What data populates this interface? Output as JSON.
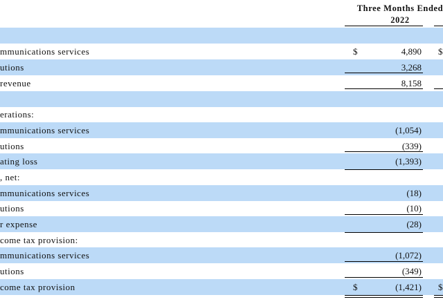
{
  "header": {
    "title": "Three Months Ended",
    "year": "2022"
  },
  "rows": [
    {
      "label": "",
      "value": "",
      "currency": "",
      "currency2": ""
    },
    {
      "label": "mmunications services",
      "value": "4,890",
      "currency": "$",
      "currency2": "$"
    },
    {
      "label": "utions",
      "value": "3,268",
      "currency": "",
      "currency2": ""
    },
    {
      "label": "revenue",
      "value": "8,158",
      "currency": "",
      "currency2": ""
    },
    {
      "label": "",
      "value": "",
      "currency": "",
      "currency2": ""
    },
    {
      "label": "erations:",
      "value": "",
      "currency": "",
      "currency2": ""
    },
    {
      "label": "mmunications services",
      "value": "(1,054)",
      "currency": "",
      "currency2": ""
    },
    {
      "label": "utions",
      "value": "(339)",
      "currency": "",
      "currency2": ""
    },
    {
      "label": "ating loss",
      "value": "(1,393)",
      "currency": "",
      "currency2": ""
    },
    {
      "label": ", net:",
      "value": "",
      "currency": "",
      "currency2": ""
    },
    {
      "label": "mmunications services",
      "value": "(18)",
      "currency": "",
      "currency2": ""
    },
    {
      "label": "utions",
      "value": "(10)",
      "currency": "",
      "currency2": ""
    },
    {
      "label": "r expense",
      "value": "(28)",
      "currency": "",
      "currency2": ""
    },
    {
      "label": "come tax provision:",
      "value": "",
      "currency": "",
      "currency2": ""
    },
    {
      "label": "mmunications services",
      "value": "(1,072)",
      "currency": "",
      "currency2": ""
    },
    {
      "label": "utions",
      "value": "(349)",
      "currency": "",
      "currency2": ""
    },
    {
      "label": "come tax provision",
      "value": "(1,421)",
      "currency": "$",
      "currency2": "$"
    }
  ]
}
